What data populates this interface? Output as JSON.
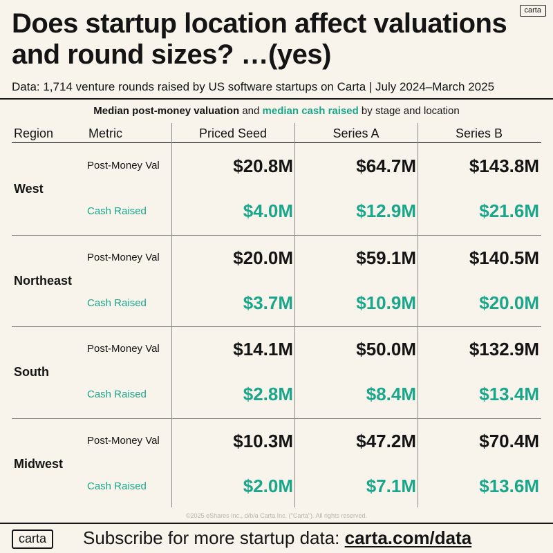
{
  "brand": {
    "logo_text": "carta"
  },
  "header": {
    "title": "Does startup location affect valuations and round sizes? …(yes)",
    "subtitle": "Data: 1,714 venture rounds raised by US software startups on Carta | July 2024–March 2025",
    "legend_part1": "Median post-money valuation",
    "legend_part2": " and ",
    "legend_part3": "median cash raised",
    "legend_part4": " by stage and location"
  },
  "colors": {
    "text": "#141414",
    "accent_teal": "#1aa68a",
    "background": "#f8f4ec"
  },
  "table": {
    "col_headers": [
      "Region",
      "Metric",
      "Priced Seed",
      "Series A",
      "Series B"
    ],
    "metric_labels": {
      "valuation": "Post-Money Val",
      "cash": "Cash Raised"
    }
  },
  "chart_data": {
    "type": "table",
    "title": "Median post-money valuation and median cash raised by stage and location",
    "columns": [
      "Priced Seed",
      "Series A",
      "Series B"
    ],
    "rows": [
      {
        "region": "West",
        "valuation": [
          "$20.8M",
          "$64.7M",
          "$143.8M"
        ],
        "cash": [
          "$4.0M",
          "$12.9M",
          "$21.6M"
        ]
      },
      {
        "region": "Northeast",
        "valuation": [
          "$20.0M",
          "$59.1M",
          "$140.5M"
        ],
        "cash": [
          "$3.7M",
          "$10.9M",
          "$20.0M"
        ]
      },
      {
        "region": "South",
        "valuation": [
          "$14.1M",
          "$50.0M",
          "$132.9M"
        ],
        "cash": [
          "$2.8M",
          "$8.4M",
          "$13.4M"
        ]
      },
      {
        "region": "Midwest",
        "valuation": [
          "$10.3M",
          "$47.2M",
          "$70.4M"
        ],
        "cash": [
          "$2.0M",
          "$7.1M",
          "$13.6M"
        ]
      }
    ]
  },
  "footer": {
    "copyright": "©2025 eShares Inc., d/b/a Carta Inc. (\"Carta\"). All rights reserved.",
    "cta_text": "Subscribe for more startup data: ",
    "cta_link": "carta.com/data"
  }
}
